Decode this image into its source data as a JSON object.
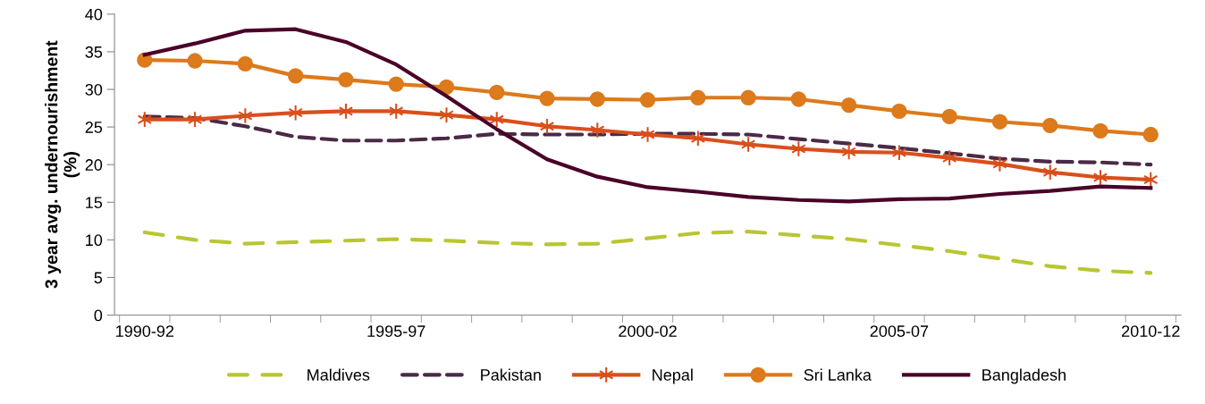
{
  "chart_data": {
    "type": "line",
    "ylabel": "3 year avg. undernourishment\n(%)",
    "categories": [
      "1990-92",
      null,
      null,
      null,
      null,
      "1995-97",
      null,
      null,
      null,
      null,
      "2000-02",
      null,
      null,
      null,
      null,
      "2005-07",
      null,
      null,
      null,
      null,
      "2010-12"
    ],
    "ylim": [
      0,
      40
    ],
    "yticks": [
      0,
      5,
      10,
      15,
      20,
      25,
      30,
      35,
      40
    ],
    "grid": false,
    "legend": "bottom",
    "series": [
      {
        "name": "Maldives",
        "color": "#b9c632",
        "line_style": "dashed",
        "marker": "none",
        "values": [
          11.0,
          10.0,
          9.5,
          9.7,
          9.9,
          10.1,
          9.9,
          9.6,
          9.4,
          9.5,
          10.2,
          10.9,
          11.1,
          10.6,
          10.1,
          9.3,
          8.5,
          7.5,
          6.5,
          5.9,
          5.6
        ]
      },
      {
        "name": "Pakistan",
        "color": "#4b2a47",
        "line_style": "dashed",
        "marker": "none",
        "values": [
          26.4,
          26.2,
          25.1,
          23.7,
          23.2,
          23.2,
          23.5,
          24.1,
          24.0,
          24.0,
          24.1,
          24.1,
          24.0,
          23.4,
          22.8,
          22.2,
          21.5,
          20.8,
          20.4,
          20.3,
          20.0
        ]
      },
      {
        "name": "Nepal",
        "color": "#d94f1c",
        "line_style": "solid",
        "marker": "cross",
        "values": [
          26.0,
          26.0,
          26.5,
          26.9,
          27.1,
          27.1,
          26.6,
          26.0,
          25.1,
          24.6,
          24.0,
          23.5,
          22.7,
          22.1,
          21.7,
          21.6,
          20.9,
          20.1,
          19.0,
          18.3,
          18.0
        ]
      },
      {
        "name": "Sri Lanka",
        "color": "#dc7a1c",
        "line_style": "solid",
        "marker": "circle",
        "values": [
          33.9,
          33.8,
          33.4,
          31.8,
          31.3,
          30.7,
          30.3,
          29.6,
          28.8,
          28.7,
          28.6,
          28.9,
          28.9,
          28.7,
          27.9,
          27.1,
          26.4,
          25.7,
          25.2,
          24.5,
          24.0
        ]
      },
      {
        "name": "Bangladesh",
        "color": "#4a0028",
        "line_style": "solid",
        "marker": "none",
        "values": [
          34.6,
          36.1,
          37.8,
          38.0,
          36.3,
          33.3,
          29.1,
          24.7,
          20.7,
          18.4,
          17.0,
          16.4,
          15.7,
          15.3,
          15.1,
          15.4,
          15.5,
          16.1,
          16.5,
          17.1,
          16.9
        ]
      }
    ]
  }
}
